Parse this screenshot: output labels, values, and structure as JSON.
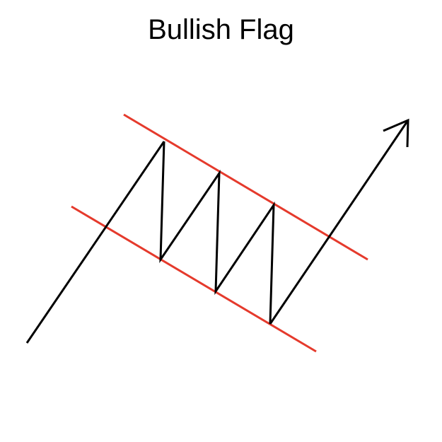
{
  "title": "Bullish Flag",
  "colors": {
    "background": "#ffffff",
    "price_line": "#000000",
    "channel_lines": "#e53a2c"
  },
  "icons": {
    "breakout_arrow": "arrowhead-icon"
  }
}
